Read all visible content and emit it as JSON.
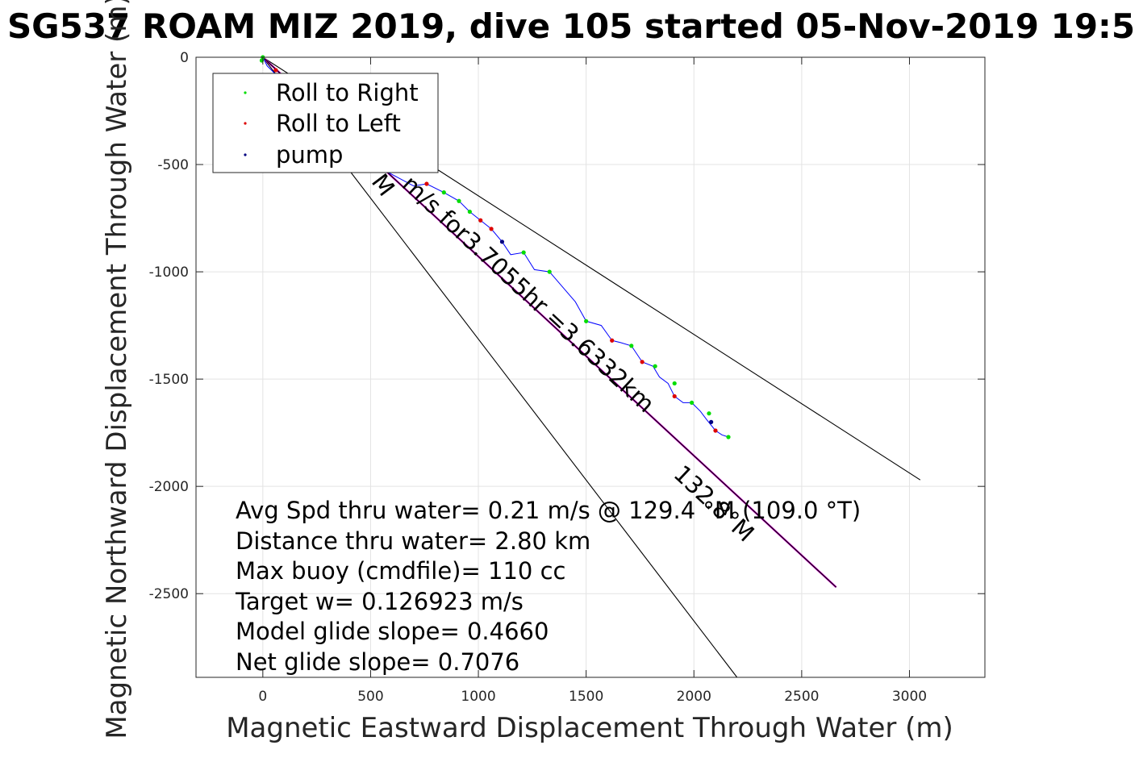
{
  "chart_data": {
    "type": "scatter",
    "title": "SG537 ROAM MIZ 2019, dive 105 started 05-Nov-2019 19:5",
    "xlabel": "Magnetic Eastward Displacement Through Water (m)",
    "ylabel": "Magnetic Northward Displacement Through Water (m)",
    "xlim": [
      -310,
      3350
    ],
    "ylim": [
      -2890,
      0
    ],
    "xticks": [
      0,
      500,
      1000,
      1500,
      2000,
      2500,
      3000
    ],
    "yticks": [
      0,
      -500,
      -1000,
      -1500,
      -2000,
      -2500
    ],
    "grid": true,
    "legend_position": "top-left",
    "legend": [
      {
        "label": "Roll to Right",
        "color": "#00dd00"
      },
      {
        "label": "Roll to Left",
        "color": "#dd0000"
      },
      {
        "label": "pump",
        "color": "#000080"
      }
    ],
    "track": {
      "color": "#0000ff",
      "x": [
        0,
        20,
        60,
        120,
        250,
        400,
        550,
        700,
        760,
        840,
        910,
        960,
        1010,
        1060,
        1110,
        1150,
        1210,
        1260,
        1330,
        1390,
        1450,
        1500,
        1570,
        1620,
        1660,
        1710,
        1760,
        1810,
        1840,
        1880,
        1910,
        1950,
        1990,
        2030,
        2060,
        2100,
        2130,
        2160
      ],
      "y": [
        0,
        -40,
        -80,
        -160,
        -300,
        -420,
        -520,
        -600,
        -590,
        -630,
        -670,
        -720,
        -760,
        -800,
        -860,
        -920,
        -910,
        -990,
        -1000,
        -1070,
        -1140,
        -1230,
        -1250,
        -1320,
        -1330,
        -1345,
        -1420,
        -1440,
        -1490,
        -1520,
        -1580,
        -1610,
        -1610,
        -1650,
        -1690,
        -1740,
        -1760,
        -1770
      ]
    },
    "series": [
      {
        "name": "Roll to Right",
        "color": "#00dd00",
        "x": [
          -5,
          0,
          840,
          910,
          960,
          1210,
          1330,
          1500,
          1710,
          1820,
          1910,
          1990,
          2070,
          2160
        ],
        "y": [
          -15,
          0,
          -630,
          -670,
          -720,
          -910,
          -1000,
          -1230,
          -1345,
          -1440,
          -1520,
          -1610,
          -1660,
          -1770
        ]
      },
      {
        "name": "Roll to Left",
        "color": "#dd0000",
        "x": [
          60,
          760,
          1010,
          1060,
          1620,
          1760,
          1910,
          2100
        ],
        "y": [
          -60,
          -590,
          -760,
          -800,
          -1320,
          -1420,
          -1580,
          -1740
        ]
      },
      {
        "name": "pump",
        "color": "#000080",
        "x": [
          1110,
          2080
        ],
        "y": [
          -860,
          -1700
        ]
      }
    ],
    "reference_lines": [
      {
        "x": [
          0,
          3050
        ],
        "y": [
          0,
          -1970
        ],
        "color": "#000000"
      },
      {
        "x": [
          0,
          2200
        ],
        "y": [
          0,
          -2890
        ],
        "color": "#000000"
      },
      {
        "x": [
          0,
          2660
        ],
        "y": [
          0,
          -2470
        ],
        "color": "#cc00cc"
      },
      {
        "x": [
          0,
          2660
        ],
        "y": [
          0,
          -2470
        ],
        "color": "#000000"
      }
    ],
    "line_labels": [
      {
        "text": "m/s for3.7055hr =3.6332km",
        "x": 640,
        "y": -600,
        "angle_deg": 43
      },
      {
        "text": "M",
        "x": 500,
        "y": -580,
        "angle_deg": 53
      },
      {
        "text": "132.8°M",
        "x": 1900,
        "y": -1950,
        "angle_deg": 43
      }
    ],
    "annotations": [
      "Avg Spd thru water=  0.21 m/s @ 129.4 °M (109.0 °T)",
      "Distance thru water=  2.80 km",
      "Max buoy (cmdfile)= 110 cc",
      "Target w= 0.126923 m/s",
      "Model glide slope= 0.4660",
      "Net glide slope= 0.7076"
    ]
  }
}
